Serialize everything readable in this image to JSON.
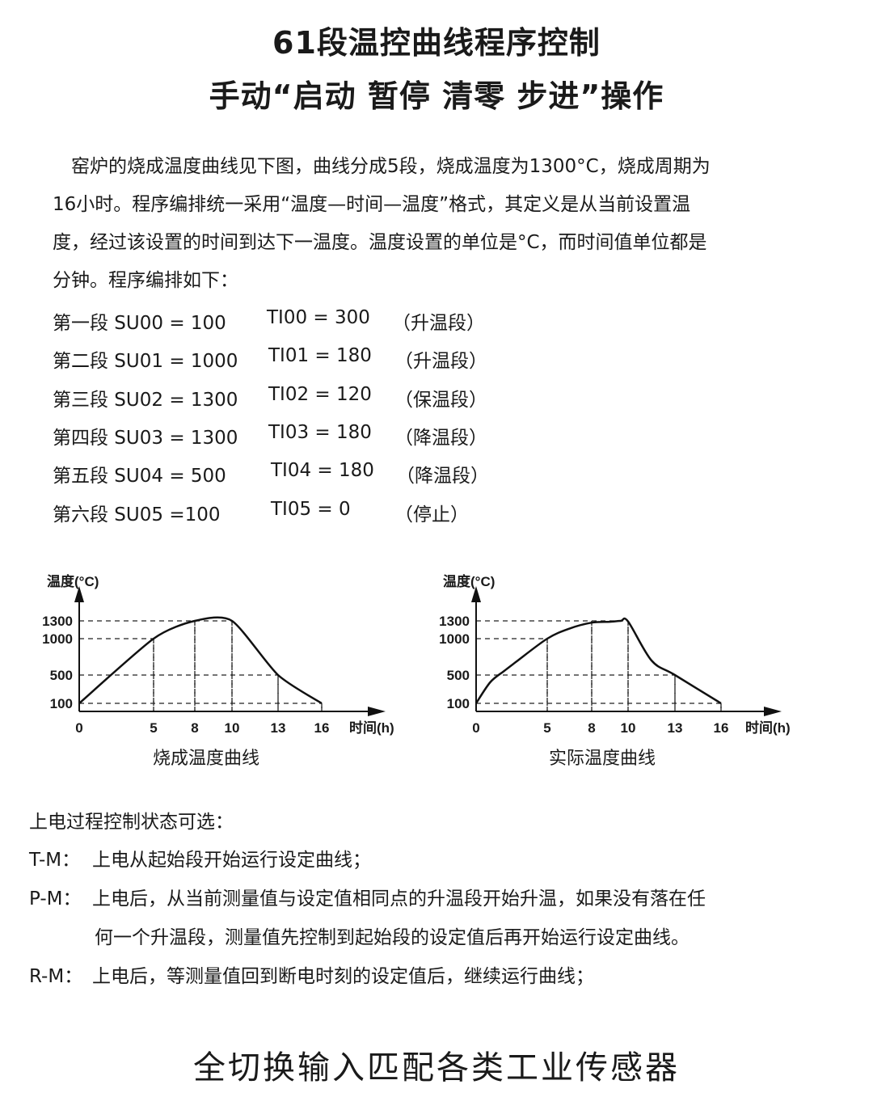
{
  "title": "61段温控曲线程序控制",
  "subtitle": "手动“启动 暂停 清零 步进”操作",
  "intro": [
    "窑炉的烧成温度曲线见下图，曲线分成5段，烧成温度为1300°C，烧成周期为",
    "16小时。程序编排统一采用“温度—时间—温度”格式，其定义是从当前设置温",
    "度，经过该设置的时间到达下一温度。温度设置的单位是°C，而时间值单位都是",
    "分钟。程序编排如下："
  ],
  "program": [
    {
      "seg": "第一段 SU00 = 100",
      "ti": "TI00 = 300",
      "note": "（升温段）"
    },
    {
      "seg": "第二段 SU01 = 1000",
      "ti": "TI01 = 180",
      "note": "（升温段）"
    },
    {
      "seg": "第三段 SU02 = 1300",
      "ti": "TI02 = 120",
      "note": "（保温段）"
    },
    {
      "seg": "第四段 SU03 = 1300",
      "ti": "TI03 = 180",
      "note": "（降温段）"
    },
    {
      "seg": "第五段 SU04 = 500",
      "ti": "TI04 = 180",
      "note": "（降温段）"
    },
    {
      "seg": "第六段 SU05 =100",
      "ti": "TI05 = 0",
      "note": "（停止）"
    }
  ],
  "chart_data": [
    {
      "type": "line",
      "title": "烧成温度曲线",
      "ylabel": "温度(°C)",
      "xlabel": "时间(h)",
      "x_ticks": [
        0,
        5,
        8,
        10,
        13,
        16
      ],
      "y_ticks": [
        100,
        500,
        1000,
        1300
      ],
      "grid": "dashed guides",
      "x": [
        0,
        5,
        8,
        10,
        13,
        16
      ],
      "y": [
        100,
        1000,
        1300,
        1300,
        500,
        100
      ]
    },
    {
      "type": "line",
      "title": "实际温度曲线",
      "ylabel": "温度(°C)",
      "xlabel": "时间(h)",
      "x_ticks": [
        0,
        5,
        8,
        10,
        13,
        16
      ],
      "y_ticks": [
        100,
        500,
        1000,
        1300
      ],
      "grid": "dashed guides",
      "x": [
        0,
        1,
        2,
        2.8,
        5,
        6.5,
        8,
        9,
        9.6,
        10,
        11.5,
        13,
        16
      ],
      "y": [
        100,
        400,
        560,
        680,
        1000,
        1170,
        1270,
        1285,
        1300,
        1290,
        700,
        500,
        100
      ]
    }
  ],
  "power_on": {
    "heading": "上电过程控制状态可选：",
    "items": [
      {
        "label": "T-M：",
        "text": [
          "上电从起始段开始运行设定曲线；"
        ]
      },
      {
        "label": "P-M：",
        "text": [
          "上电后，从当前测量值与设定值相同点的升温段开始升温，如果没有落在任",
          "何一个升温段，测量值先控制到起始段的设定值后再开始运行设定曲线。"
        ]
      },
      {
        "label": "R-M：",
        "text": [
          "上电后，等测量值回到断电时刻的设定值后，继续运行曲线；"
        ]
      }
    ]
  },
  "footer": "全切换输入匹配各类工业传感器"
}
